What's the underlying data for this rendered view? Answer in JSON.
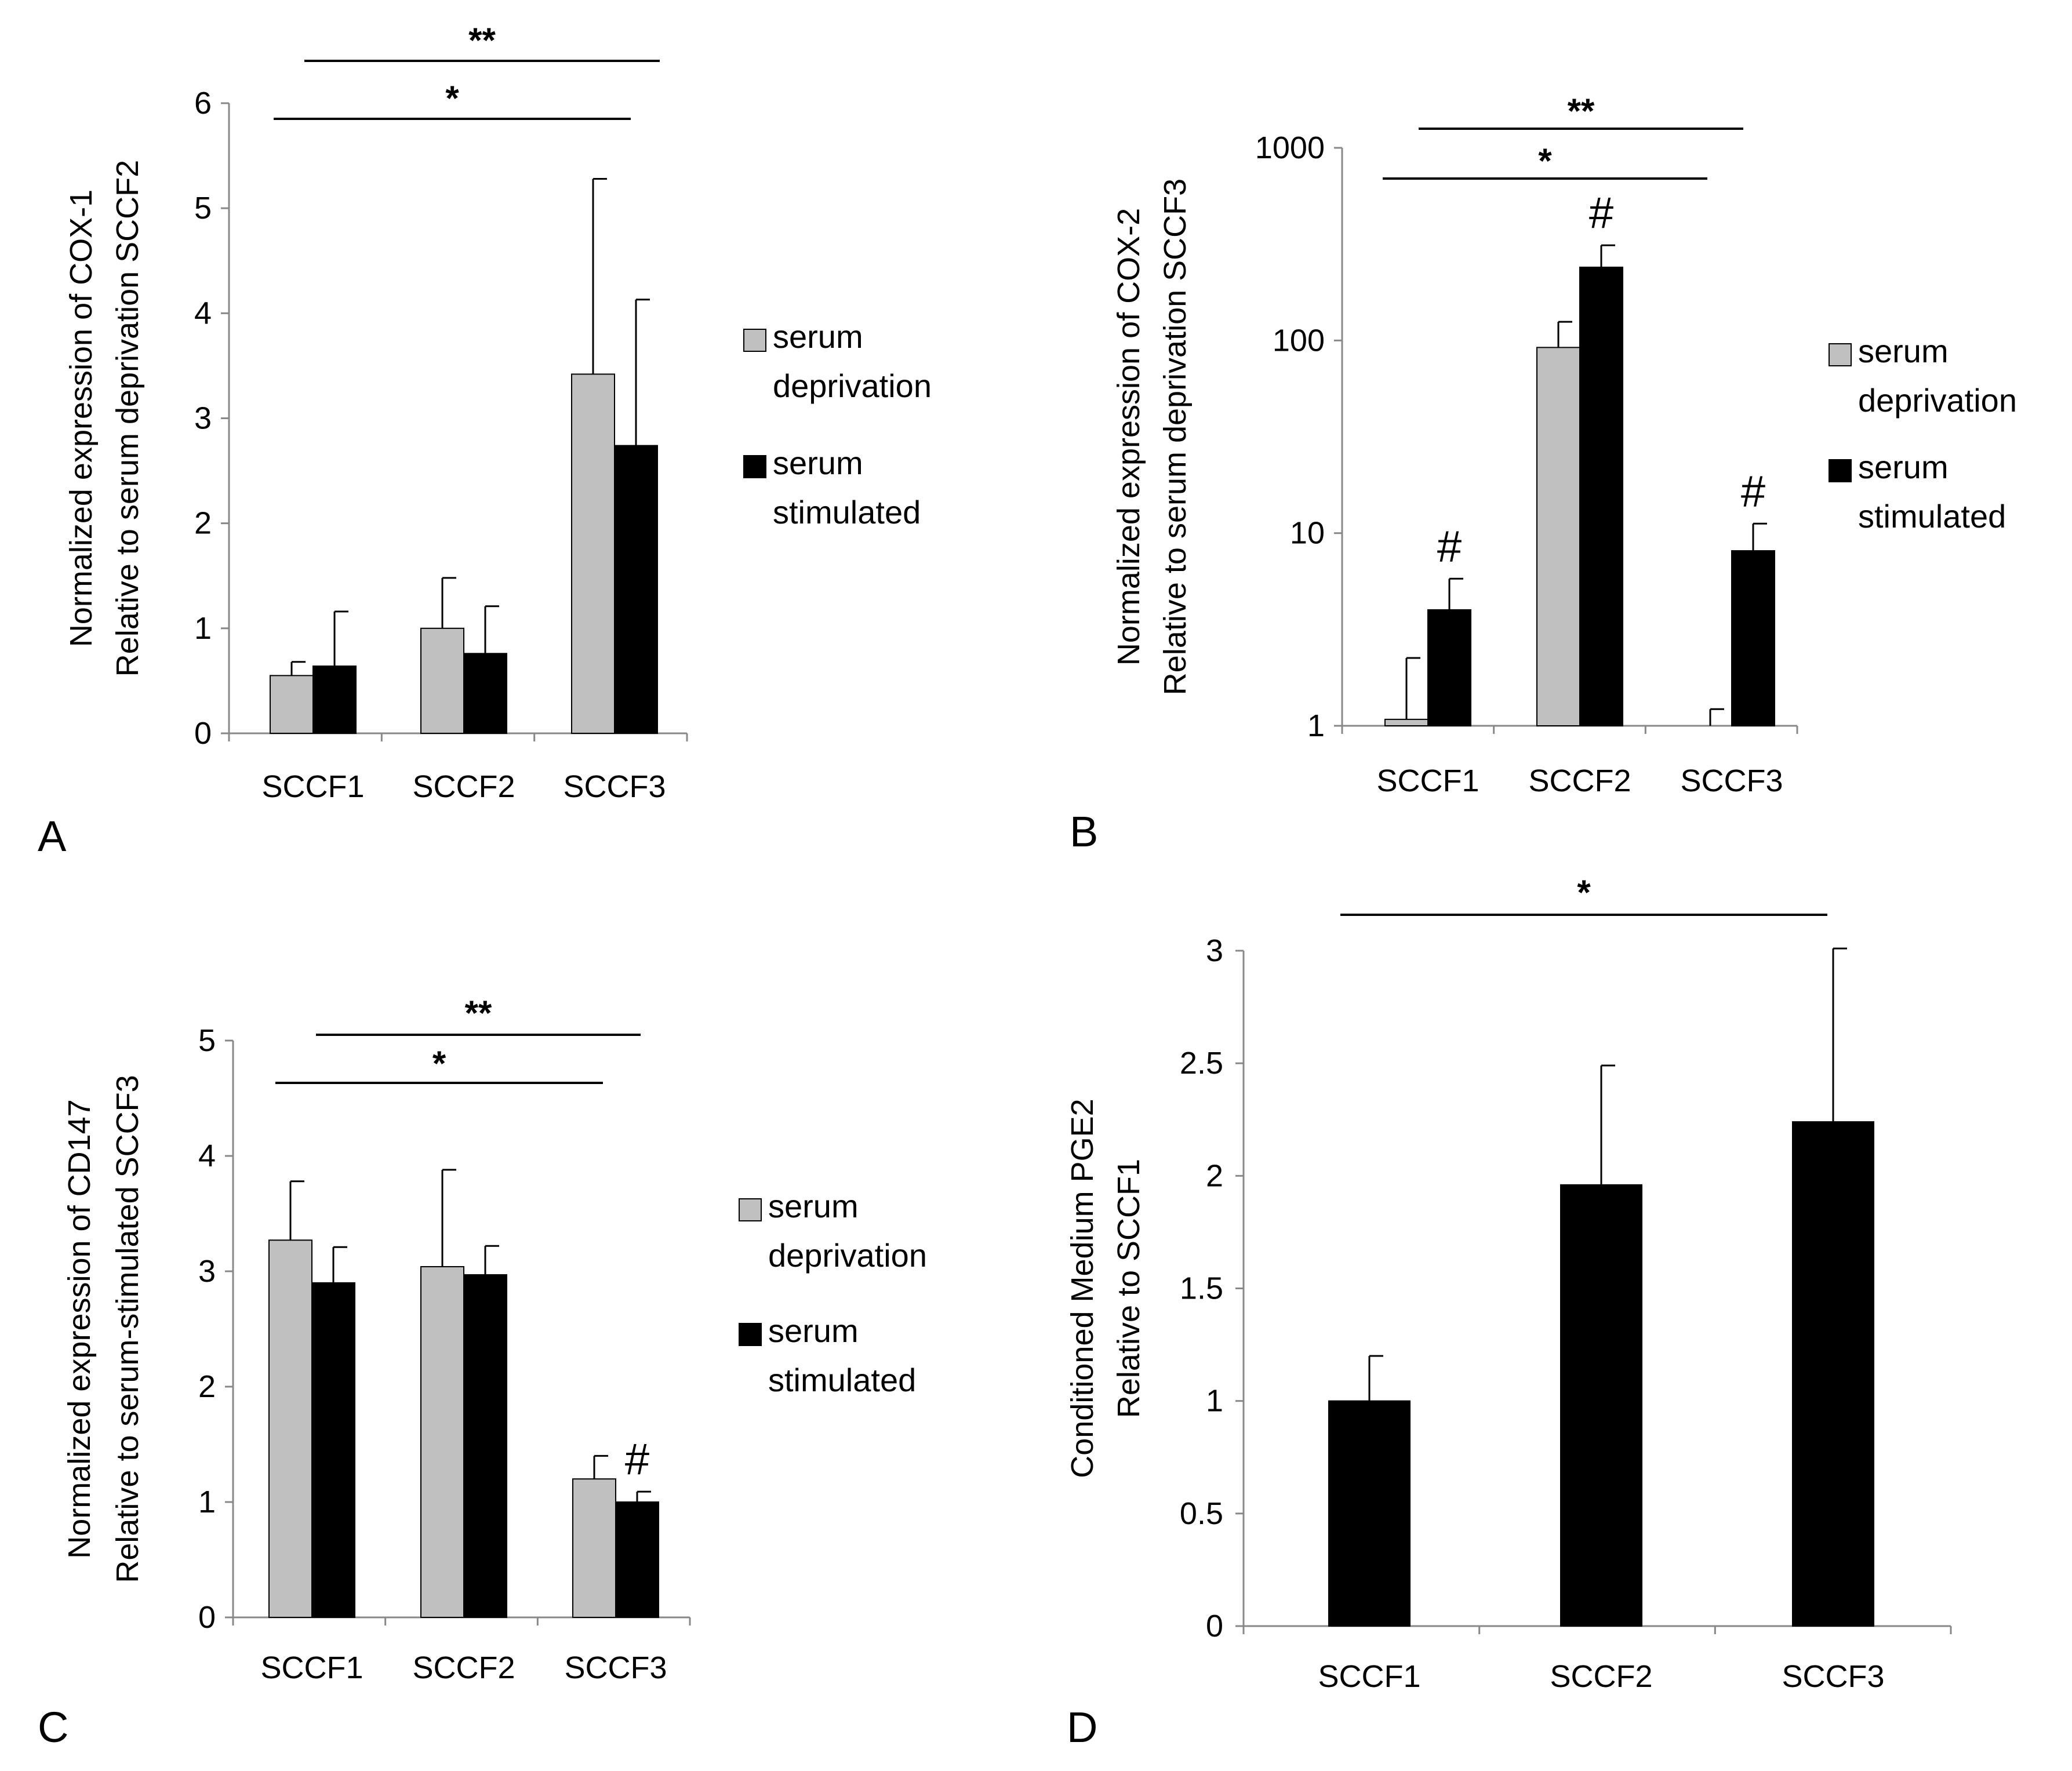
{
  "legend": {
    "deprivation_line1": "serum",
    "deprivation_line2": "deprivation",
    "stimulated_line1": "serum",
    "stimulated_line2": "stimulated"
  },
  "colors": {
    "serum_deprivation": "#c0c0c0",
    "serum_stimulated": "#000000",
    "axis": "#888888",
    "errorbar": "#000000"
  },
  "chart_data": [
    {
      "panel": "A",
      "type": "bar",
      "scale": "linear",
      "ylabel_line1": "Normalized expression of COX-1",
      "ylabel_line2": "Relative to serum deprivation  SCCF2",
      "categories": [
        "SCCF1",
        "SCCF2",
        "SCCF3"
      ],
      "ylim": [
        0,
        6
      ],
      "yticks": [
        0,
        1,
        2,
        3,
        4,
        5,
        6
      ],
      "ytick_labels": [
        "0",
        "1",
        "2",
        "3",
        "4",
        "5",
        "6"
      ],
      "series": [
        {
          "name": "serum deprivation",
          "values": [
            0.55,
            1.0,
            3.42
          ],
          "errors": [
            0.13,
            0.48,
            1.86
          ]
        },
        {
          "name": "serum stimulated",
          "values": [
            0.64,
            0.76,
            2.74
          ],
          "errors": [
            0.52,
            0.45,
            1.39
          ]
        }
      ],
      "significance": [
        {
          "label": "**",
          "from": "SCCF1",
          "to": "SCCF3",
          "pair": "stimulated"
        },
        {
          "label": "*",
          "from": "SCCF1",
          "to": "SCCF3",
          "pair": "deprivation"
        }
      ],
      "markers": []
    },
    {
      "panel": "B",
      "type": "bar",
      "scale": "log",
      "ylabel_line1": "Normalized expression of COX-2",
      "ylabel_line2": "Relative to  serum deprivation SCCF3",
      "categories": [
        "SCCF1",
        "SCCF2",
        "SCCF3"
      ],
      "ylim": [
        1,
        1000
      ],
      "yticks": [
        1,
        10,
        100,
        1000
      ],
      "ytick_labels": [
        "1",
        "10",
        "100",
        "1000"
      ],
      "series": [
        {
          "name": "serum deprivation",
          "values": [
            1.08,
            92,
            1.0
          ],
          "errors": [
            1.17,
            33,
            0.22
          ]
        },
        {
          "name": "serum stimulated",
          "values": [
            4.0,
            240,
            8.1
          ],
          "errors": [
            1.8,
            72,
            3.1
          ]
        }
      ],
      "significance": [
        {
          "label": "**",
          "from": "SCCF1",
          "to": "SCCF3",
          "pair": "stimulated"
        },
        {
          "label": "*",
          "from": "SCCF1",
          "to": "SCCF3",
          "pair": "deprivation"
        }
      ],
      "markers": [
        {
          "label": "#",
          "category": "SCCF1",
          "series": "serum stimulated"
        },
        {
          "label": "#",
          "category": "SCCF2",
          "series": "serum stimulated"
        },
        {
          "label": "#",
          "category": "SCCF3",
          "series": "serum stimulated"
        }
      ]
    },
    {
      "panel": "C",
      "type": "bar",
      "scale": "linear",
      "ylabel_line1": "Normalized expression of CD147",
      "ylabel_line2": "Relative to serum-stimulated SCCF3",
      "categories": [
        "SCCF1",
        "SCCF2",
        "SCCF3"
      ],
      "ylim": [
        0,
        5
      ],
      "yticks": [
        0,
        1,
        2,
        3,
        4,
        5
      ],
      "ytick_labels": [
        "0",
        "1",
        "2",
        "3",
        "4",
        "5"
      ],
      "series": [
        {
          "name": "serum deprivation",
          "values": [
            3.27,
            3.04,
            1.2
          ],
          "errors": [
            0.51,
            0.84,
            0.2
          ]
        },
        {
          "name": "serum stimulated",
          "values": [
            2.9,
            2.97,
            1.0
          ],
          "errors": [
            0.31,
            0.25,
            0.09
          ]
        }
      ],
      "significance": [
        {
          "label": "**",
          "from": "SCCF1",
          "to": "SCCF3",
          "pair": "stimulated"
        },
        {
          "label": "*",
          "from": "SCCF1",
          "to": "SCCF3",
          "pair": "deprivation"
        }
      ],
      "markers": [
        {
          "label": "#",
          "category": "SCCF3",
          "series": "serum stimulated"
        }
      ]
    },
    {
      "panel": "D",
      "type": "bar",
      "scale": "linear",
      "ylabel_line1": "Conditioned Medium PGE2",
      "ylabel_line2": "Relative to SCCF1",
      "categories": [
        "SCCF1",
        "SCCF2",
        "SCCF3"
      ],
      "ylim": [
        0,
        3
      ],
      "yticks": [
        0,
        0.5,
        1,
        1.5,
        2,
        2.5,
        3
      ],
      "ytick_labels": [
        "0",
        "0.5",
        "1",
        "1.5",
        "2",
        "2.5",
        "3"
      ],
      "series": [
        {
          "name": "serum stimulated",
          "values": [
            1.0,
            1.96,
            2.24
          ],
          "errors": [
            0.2,
            0.53,
            0.77
          ]
        }
      ],
      "significance": [
        {
          "label": "*",
          "from": "SCCF1",
          "to": "SCCF3",
          "pair": "single"
        }
      ],
      "markers": []
    }
  ]
}
